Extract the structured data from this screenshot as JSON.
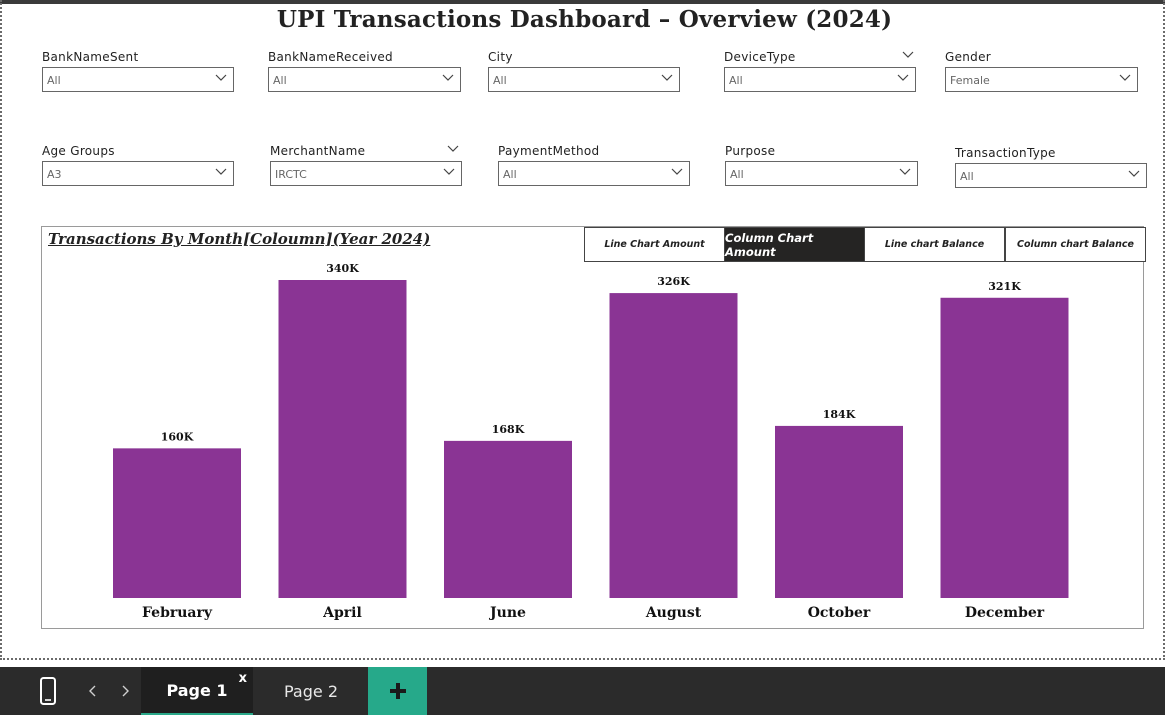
{
  "title": "UPI Transactions Dashboard – Overview (2024)",
  "slicers_row1": [
    {
      "label": "BankNameSent",
      "value": "All"
    },
    {
      "label": "BankNameReceived",
      "value": "All"
    },
    {
      "label": "City",
      "value": "All"
    },
    {
      "label": "DeviceType",
      "value": "All"
    },
    {
      "label": "Gender",
      "value": "Female"
    }
  ],
  "slicers_row2": [
    {
      "label": "Age Groups",
      "value": "A3"
    },
    {
      "label": "MerchantName",
      "value": "IRCTC"
    },
    {
      "label": "PaymentMethod",
      "value": "All"
    },
    {
      "label": "Purpose",
      "value": "All"
    },
    {
      "label": "TransactionType",
      "value": "All"
    }
  ],
  "chart_buttons": [
    {
      "label": "Line Chart Amount",
      "active": false
    },
    {
      "label": "Column Chart Amount",
      "active": true
    },
    {
      "label": "Line chart Balance",
      "active": false
    },
    {
      "label": "Column chart Balance",
      "active": false
    }
  ],
  "colors": {
    "bar": "#8a3494",
    "active_button": "#252423",
    "add_tab": "#26a98a",
    "footer": "#2b2b2b"
  },
  "chart_data": {
    "type": "bar",
    "title": "Transactions By Month[Coloumn](Year 2024)",
    "categories": [
      "February",
      "April",
      "June",
      "August",
      "October",
      "December"
    ],
    "values": [
      160,
      340,
      168,
      326,
      184,
      321
    ],
    "data_labels": [
      "160K",
      "340K",
      "168K",
      "326K",
      "184K",
      "321K"
    ],
    "unit": "K",
    "ylim": [
      0,
      340
    ],
    "grid": false,
    "legend": "none"
  },
  "footer": {
    "tabs": [
      {
        "label": "Page 1",
        "active": true,
        "close": "x"
      },
      {
        "label": "Page 2",
        "active": false
      }
    ],
    "add_label": "+"
  }
}
